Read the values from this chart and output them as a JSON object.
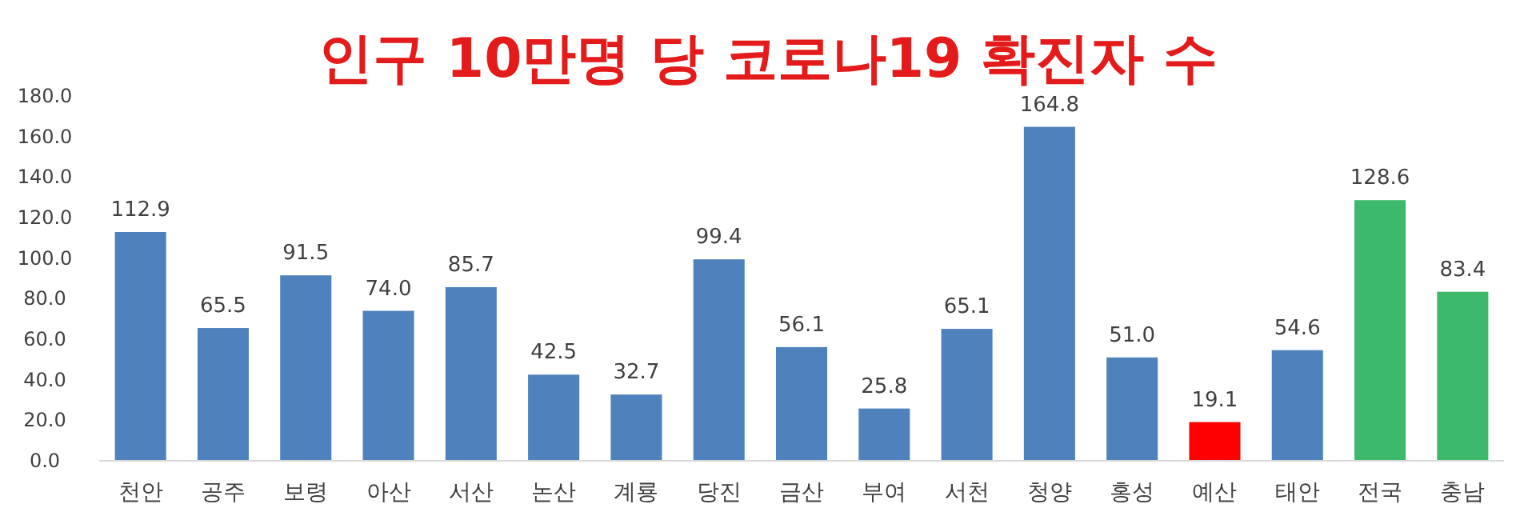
{
  "chart_data": {
    "type": "bar",
    "title": "인구 10만명 당 코로나19 확진자 수",
    "categories": [
      "천안",
      "공주",
      "보령",
      "아산",
      "서산",
      "논산",
      "계룡",
      "당진",
      "금산",
      "부여",
      "서천",
      "청양",
      "홍성",
      "예산",
      "태안",
      "전국",
      "충남"
    ],
    "values": [
      112.9,
      65.5,
      91.5,
      74.0,
      85.7,
      42.5,
      32.7,
      99.4,
      56.1,
      25.8,
      65.1,
      164.8,
      51.0,
      19.1,
      54.6,
      128.6,
      83.4
    ],
    "value_labels": [
      "112.9",
      "65.5",
      "91.5",
      "74.0",
      "85.7",
      "42.5",
      "32.7",
      "99.4",
      "56.1",
      "25.8",
      "65.1",
      "164.8",
      "51.0",
      "19.1",
      "54.6",
      "128.6",
      "83.4"
    ],
    "colors": [
      "#4f81bd",
      "#4f81bd",
      "#4f81bd",
      "#4f81bd",
      "#4f81bd",
      "#4f81bd",
      "#4f81bd",
      "#4f81bd",
      "#4f81bd",
      "#4f81bd",
      "#4f81bd",
      "#4f81bd",
      "#4f81bd",
      "#ff0000",
      "#4f81bd",
      "#3cb96a",
      "#3cb96a"
    ],
    "ylim": [
      0,
      180
    ],
    "yticks": [
      {
        "value": 0,
        "label": "0.0"
      },
      {
        "value": 20,
        "label": "20.0"
      },
      {
        "value": 40,
        "label": "40.0"
      },
      {
        "value": 60,
        "label": "60.0"
      },
      {
        "value": 80,
        "label": "80.0"
      },
      {
        "value": 100,
        "label": "100.0"
      },
      {
        "value": 120,
        "label": "120.0"
      },
      {
        "value": 140,
        "label": "140.0"
      },
      {
        "value": 160,
        "label": "160.0"
      },
      {
        "value": 180,
        "label": "180.0"
      }
    ]
  }
}
